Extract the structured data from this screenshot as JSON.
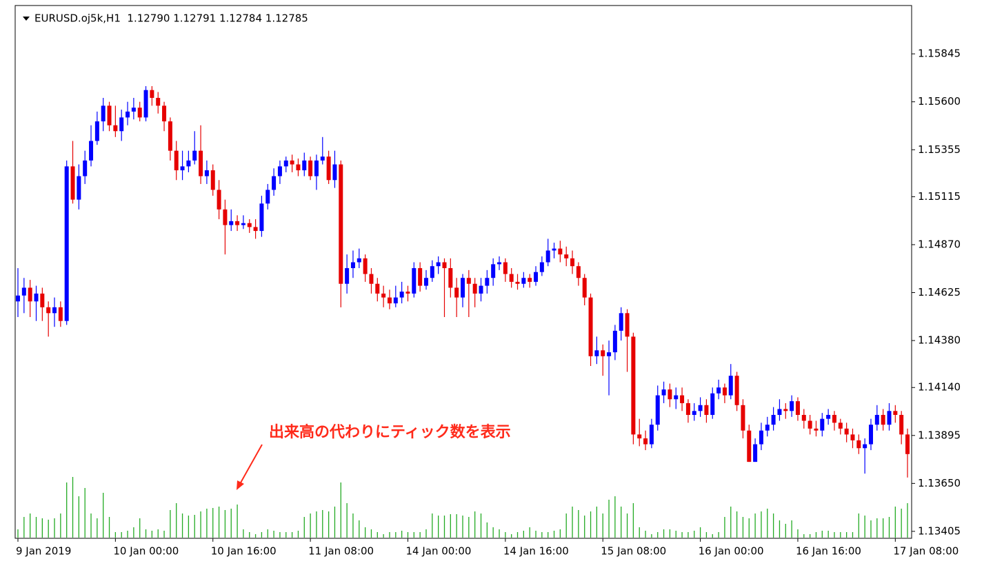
{
  "chart_data": {
    "type": "candlestick",
    "title": "EURUSD.oj5k,H1  1.12790 1.12791 1.12784 1.12785",
    "annotation": "出来高の代わりにティック数を表示",
    "up_color": "#0000ff",
    "down_color": "#e60000",
    "volume_color": "#22aa22",
    "annotation_color": "#ff2a1a",
    "categories": [
      "9 Jan 2019",
      null,
      null,
      null,
      null,
      null,
      null,
      null,
      null,
      null,
      null,
      null,
      null,
      null,
      null,
      null,
      "10 Jan 00:00",
      null,
      null,
      null,
      null,
      null,
      null,
      null,
      null,
      null,
      null,
      null,
      null,
      null,
      null,
      null,
      "10 Jan 16:00",
      null,
      null,
      null,
      null,
      null,
      null,
      null,
      null,
      null,
      null,
      null,
      null,
      null,
      null,
      null,
      "11 Jan 08:00",
      null,
      null,
      null,
      null,
      null,
      null,
      null,
      null,
      null,
      null,
      null,
      null,
      null,
      null,
      null,
      "14 Jan 00:00",
      null,
      null,
      null,
      null,
      null,
      null,
      null,
      null,
      null,
      null,
      null,
      null,
      null,
      null,
      null,
      "14 Jan 16:00",
      null,
      null,
      null,
      null,
      null,
      null,
      null,
      null,
      null,
      null,
      null,
      null,
      null,
      null,
      null,
      "15 Jan 08:00",
      null,
      null,
      null,
      null,
      null,
      null,
      null,
      null,
      null,
      null,
      null,
      null,
      null,
      null,
      null,
      "16 Jan 00:00",
      null,
      null,
      null,
      null,
      null,
      null,
      null,
      null,
      null,
      null,
      null,
      null,
      null,
      null,
      null,
      "16 Jan 16:00",
      null,
      null,
      null,
      null,
      null,
      null,
      null,
      null,
      null,
      null,
      null,
      null,
      null,
      null,
      null,
      "17 Jan 08:00",
      null,
      null
    ],
    "open": [
      1.1458,
      1.1461,
      1.1465,
      1.1458,
      1.1462,
      1.1455,
      1.1452,
      1.1455,
      1.1448,
      1.1527,
      1.151,
      1.1522,
      1.153,
      1.154,
      1.155,
      1.1558,
      1.1548,
      1.1545,
      1.1552,
      1.1555,
      1.1557,
      1.1552,
      1.1566,
      1.1562,
      1.1558,
      1.155,
      1.1535,
      1.1525,
      1.1527,
      1.153,
      1.1535,
      1.1522,
      1.1525,
      1.1515,
      1.1505,
      1.1497,
      1.1499,
      1.1497,
      1.1498,
      1.1496,
      1.1494,
      1.1508,
      1.1515,
      1.1522,
      1.1527,
      1.153,
      1.1528,
      1.1525,
      1.153,
      1.1522,
      1.153,
      1.1532,
      1.152,
      1.1528,
      1.1467,
      1.1475,
      1.1478,
      1.148,
      1.1472,
      1.1467,
      1.1462,
      1.146,
      1.1457,
      1.146,
      1.1463,
      1.1462,
      1.1475,
      1.1466,
      1.147,
      1.1476,
      1.1478,
      1.1475,
      1.1465,
      1.146,
      1.147,
      1.1467,
      1.1462,
      1.1466,
      1.147,
      1.1477,
      1.1478,
      1.1472,
      1.1468,
      1.1467,
      1.147,
      1.1468,
      1.1473,
      1.1478,
      1.1484,
      1.1485,
      1.1482,
      1.148,
      1.1476,
      1.147,
      1.146,
      1.143,
      1.1433,
      1.143,
      1.1432,
      1.1443,
      1.1452,
      1.144,
      1.139,
      1.1388,
      1.1385,
      1.1395,
      1.141,
      1.1413,
      1.1408,
      1.141,
      1.1406,
      1.14,
      1.1402,
      1.1405,
      1.14,
      1.1411,
      1.1414,
      1.141,
      1.142,
      1.1405,
      1.1392,
      1.1376,
      1.1385,
      1.1392,
      1.1395,
      1.14,
      1.1403,
      1.1402,
      1.1407,
      1.14,
      1.1397,
      1.1393,
      1.1392,
      1.1398,
      1.14,
      1.1396,
      1.1393,
      1.139,
      1.1387,
      1.1383,
      1.1385,
      1.1395,
      1.14,
      1.1395,
      1.1402,
      1.14,
      1.139
    ],
    "high": [
      1.1475,
      1.147,
      1.1469,
      1.1466,
      1.1465,
      1.1458,
      1.146,
      1.1458,
      1.153,
      1.154,
      1.1528,
      1.1535,
      1.1548,
      1.1555,
      1.1562,
      1.156,
      1.1558,
      1.1556,
      1.156,
      1.1562,
      1.156,
      1.1568,
      1.1568,
      1.1565,
      1.156,
      1.1552,
      1.154,
      1.1535,
      1.1535,
      1.1545,
      1.1548,
      1.153,
      1.1528,
      1.152,
      1.151,
      1.1505,
      1.1502,
      1.1502,
      1.15,
      1.15,
      1.1512,
      1.1518,
      1.1526,
      1.153,
      1.1532,
      1.1533,
      1.1531,
      1.1534,
      1.1532,
      1.1533,
      1.1542,
      1.1535,
      1.1535,
      1.153,
      1.1482,
      1.1484,
      1.1485,
      1.1482,
      1.1475,
      1.147,
      1.1466,
      1.1464,
      1.1466,
      1.1468,
      1.1466,
      1.1478,
      1.1478,
      1.1474,
      1.1479,
      1.1481,
      1.148,
      1.148,
      1.147,
      1.1472,
      1.1474,
      1.147,
      1.147,
      1.1474,
      1.148,
      1.1481,
      1.148,
      1.1475,
      1.1472,
      1.1473,
      1.1472,
      1.1476,
      1.1481,
      1.149,
      1.1488,
      1.1489,
      1.1486,
      1.1484,
      1.1478,
      1.1472,
      1.1462,
      1.144,
      1.1436,
      1.1438,
      1.1446,
      1.1455,
      1.1454,
      1.1442,
      1.1398,
      1.1392,
      1.1398,
      1.1415,
      1.1417,
      1.1416,
      1.1414,
      1.1414,
      1.1408,
      1.1406,
      1.1409,
      1.1408,
      1.1414,
      1.1418,
      1.1416,
      1.1426,
      1.1422,
      1.1408,
      1.1395,
      1.1388,
      1.1396,
      1.1399,
      1.1404,
      1.1408,
      1.1406,
      1.141,
      1.1409,
      1.1403,
      1.14,
      1.1397,
      1.1401,
      1.1403,
      1.1402,
      1.1398,
      1.1396,
      1.1393,
      1.139,
      1.1388,
      1.1398,
      1.1405,
      1.1403,
      1.1406,
      1.1405,
      1.1402,
      1.1393
    ],
    "low": [
      1.145,
      1.1452,
      1.145,
      1.1448,
      1.1448,
      1.144,
      1.1445,
      1.1445,
      1.1446,
      1.1508,
      1.1505,
      1.1518,
      1.1527,
      1.1538,
      1.1545,
      1.1545,
      1.1542,
      1.154,
      1.1548,
      1.1551,
      1.155,
      1.155,
      1.1558,
      1.1554,
      1.1545,
      1.153,
      1.152,
      1.152,
      1.1524,
      1.1528,
      1.1518,
      1.1518,
      1.1512,
      1.15,
      1.1482,
      1.1494,
      1.1494,
      1.1495,
      1.1493,
      1.149,
      1.1491,
      1.1505,
      1.1512,
      1.1518,
      1.1524,
      1.1524,
      1.1522,
      1.1522,
      1.152,
      1.1515,
      1.1528,
      1.1518,
      1.1516,
      1.1455,
      1.1462,
      1.147,
      1.1475,
      1.1468,
      1.1462,
      1.1458,
      1.1455,
      1.1454,
      1.1455,
      1.1457,
      1.1458,
      1.146,
      1.1463,
      1.1464,
      1.1468,
      1.1472,
      1.145,
      1.146,
      1.145,
      1.1455,
      1.145,
      1.1455,
      1.1458,
      1.1462,
      1.1466,
      1.1474,
      1.1468,
      1.1465,
      1.1464,
      1.1465,
      1.1465,
      1.1466,
      1.1471,
      1.1476,
      1.148,
      1.1478,
      1.1476,
      1.1472,
      1.1466,
      1.1456,
      1.1425,
      1.1426,
      1.142,
      1.141,
      1.1428,
      1.1438,
      1.1422,
      1.1385,
      1.1384,
      1.1382,
      1.1383,
      1.1392,
      1.1406,
      1.1404,
      1.1403,
      1.1402,
      1.1396,
      1.1397,
      1.1399,
      1.1396,
      1.1398,
      1.1408,
      1.1406,
      1.1408,
      1.1402,
      1.1388,
      1.1376,
      1.1376,
      1.1382,
      1.1389,
      1.1392,
      1.1397,
      1.1398,
      1.1399,
      1.1397,
      1.1393,
      1.139,
      1.1389,
      1.1389,
      1.1395,
      1.1392,
      1.139,
      1.1386,
      1.1383,
      1.138,
      1.137,
      1.1382,
      1.1392,
      1.1392,
      1.1392,
      1.1396,
      1.1385,
      1.1368
    ],
    "close": [
      1.1461,
      1.1465,
      1.1458,
      1.1462,
      1.1455,
      1.1452,
      1.1455,
      1.1448,
      1.1527,
      1.151,
      1.1522,
      1.153,
      1.154,
      1.155,
      1.1558,
      1.1548,
      1.1545,
      1.1552,
      1.1555,
      1.1557,
      1.1552,
      1.1566,
      1.1562,
      1.1558,
      1.155,
      1.1535,
      1.1525,
      1.1527,
      1.153,
      1.1535,
      1.1522,
      1.1525,
      1.1515,
      1.1505,
      1.1497,
      1.1499,
      1.1497,
      1.1498,
      1.1496,
      1.1494,
      1.1508,
      1.1515,
      1.1522,
      1.1527,
      1.153,
      1.1528,
      1.1525,
      1.153,
      1.1522,
      1.153,
      1.1532,
      1.152,
      1.1528,
      1.1467,
      1.1475,
      1.1478,
      1.148,
      1.1472,
      1.1467,
      1.1462,
      1.146,
      1.1457,
      1.146,
      1.1463,
      1.1462,
      1.1475,
      1.1466,
      1.147,
      1.1476,
      1.1478,
      1.1475,
      1.1465,
      1.146,
      1.147,
      1.1467,
      1.1462,
      1.1466,
      1.147,
      1.1477,
      1.1478,
      1.1472,
      1.1468,
      1.1467,
      1.147,
      1.1468,
      1.1473,
      1.1478,
      1.1484,
      1.1485,
      1.1482,
      1.148,
      1.1476,
      1.147,
      1.146,
      1.143,
      1.1433,
      1.143,
      1.1432,
      1.1443,
      1.1452,
      1.144,
      1.139,
      1.1388,
      1.1385,
      1.1395,
      1.141,
      1.1413,
      1.1408,
      1.141,
      1.1406,
      1.14,
      1.1402,
      1.1405,
      1.14,
      1.1411,
      1.1414,
      1.141,
      1.142,
      1.1405,
      1.1392,
      1.1376,
      1.1385,
      1.1392,
      1.1395,
      1.14,
      1.1403,
      1.1402,
      1.1407,
      1.14,
      1.1397,
      1.1393,
      1.1392,
      1.1398,
      1.14,
      1.1396,
      1.1393,
      1.139,
      1.1387,
      1.1383,
      1.1385,
      1.1395,
      1.14,
      1.1395,
      1.1402,
      1.14,
      1.139,
      1.138
    ],
    "volume": [
      12,
      30,
      35,
      30,
      28,
      26,
      28,
      35,
      80,
      88,
      60,
      72,
      35,
      28,
      65,
      30,
      8,
      8,
      10,
      15,
      28,
      12,
      10,
      12,
      10,
      40,
      50,
      35,
      32,
      33,
      38,
      42,
      43,
      45,
      40,
      42,
      48,
      12,
      8,
      5,
      8,
      12,
      10,
      8,
      8,
      8,
      10,
      30,
      35,
      38,
      40,
      38,
      45,
      80,
      50,
      35,
      25,
      15,
      12,
      8,
      5,
      8,
      8,
      10,
      8,
      8,
      8,
      12,
      35,
      32,
      32,
      34,
      34,
      32,
      30,
      38,
      35,
      22,
      15,
      12,
      8,
      5,
      8,
      10,
      15,
      10,
      8,
      8,
      10,
      12,
      35,
      45,
      40,
      32,
      38,
      45,
      35,
      55,
      60,
      45,
      35,
      50,
      15,
      10,
      5,
      8,
      12,
      12,
      10,
      8,
      8,
      10,
      15,
      8,
      5,
      8,
      30,
      45,
      38,
      30,
      28,
      35,
      38,
      42,
      35,
      25,
      20,
      25,
      12,
      5,
      5,
      8,
      10,
      10,
      8,
      8,
      8,
      8,
      35,
      32,
      25,
      28,
      28,
      30,
      45,
      42,
      50
    ],
    "ylim": [
      1.13373,
      1.16092
    ],
    "yticks": [
      1.15845,
      {
        "value": 1.156,
        "label": "1.15600"
      },
      1.15355,
      1.15115,
      {
        "value": 1.1487,
        "label": "1.14870"
      },
      1.14625,
      {
        "value": 1.1438,
        "label": "1.14380"
      },
      {
        "value": 1.1414,
        "label": "1.14140"
      },
      1.13895,
      {
        "value": 1.1365,
        "label": "1.13650"
      },
      1.13405
    ],
    "grid": false
  }
}
